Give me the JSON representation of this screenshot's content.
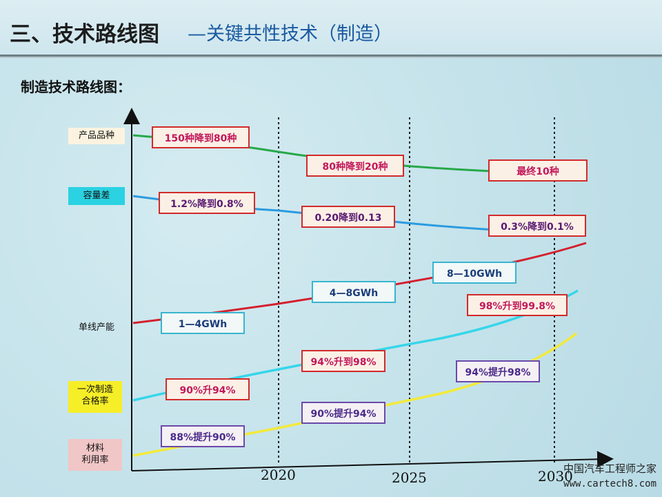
{
  "header": {
    "title_main": "三、技术路线图",
    "title_sub": "—关键共性技术（制造）"
  },
  "subtitle": "制造技术路线图：",
  "row_labels": {
    "product": "产品品种",
    "capacity": "容量差",
    "output": "单线产能",
    "yield_line1": "一次制造",
    "yield_line2": "合格率",
    "material_line1": "材料",
    "material_line2": "利用率"
  },
  "years": [
    "2020",
    "2025",
    "2030"
  ],
  "milestones": {
    "product": [
      "150种降到80种",
      "80种降到20种",
      "最终10种"
    ],
    "capacity": [
      "1.2%降到0.8%",
      "0.20降到0.13",
      "0.3%降到0.1%"
    ],
    "output": [
      "1—4GWh",
      "4—8GWh",
      "8—10GWh"
    ],
    "yield": [
      "90%升94%",
      "94%升到98%",
      "98%升到99.8%"
    ],
    "material": [
      "88%提升90%",
      "90%提升94%",
      "94%提升98%"
    ]
  },
  "colors": {
    "product_line": "#27a84a",
    "capacity_line": "#2a9be0",
    "output_line": "#d41f2e",
    "yield_line": "#36d6ea",
    "material_line": "#f2ea3a"
  },
  "watermark": {
    "name": "中国汽车工程师之家",
    "url": "www.cartech8.com"
  }
}
